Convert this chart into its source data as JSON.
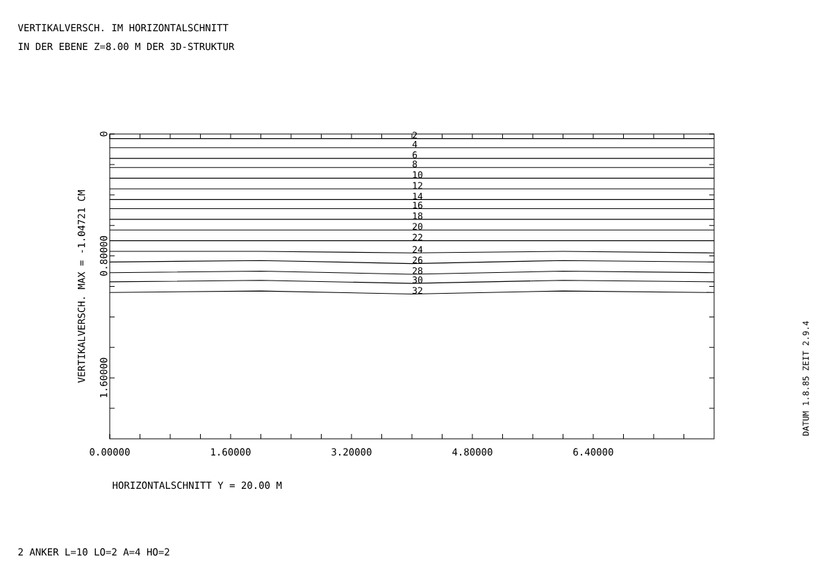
{
  "chart_data": {
    "type": "line",
    "title": "VERTIKALVERSCH. IM HORIZONTALSCHNITT",
    "subtitle": "IN DER EBENE Z=8.00 M DER 3D-STRUKTUR",
    "xlabel": "HORIZONTALSCHNITT Y = 20.00 M",
    "ylabel": "VERTIKALVERSCH. MAX = -1.04721 CM",
    "annotations": [
      "2 ANKER L=10 LO=2 A=4 HO=2",
      "DATUM 1.8.85  ZEIT 2.9.4"
    ],
    "x": [
      0,
      2.0,
      4.0,
      6.0,
      8.0
    ],
    "xlim": [
      0,
      8.0
    ],
    "ylim": [
      2.0,
      0
    ],
    "xticks": [
      {
        "value": 0,
        "label": "0.00000"
      },
      {
        "value": 0.4,
        "label": null
      },
      {
        "value": 0.8,
        "label": null
      },
      {
        "value": 1.2,
        "label": null
      },
      {
        "value": 1.6,
        "label": "1.60000"
      },
      {
        "value": 2.0,
        "label": null
      },
      {
        "value": 2.4,
        "label": null
      },
      {
        "value": 2.8,
        "label": null
      },
      {
        "value": 3.2,
        "label": "3.20000"
      },
      {
        "value": 3.6,
        "label": null
      },
      {
        "value": 4.0,
        "label": null
      },
      {
        "value": 4.4,
        "label": null
      },
      {
        "value": 4.8,
        "label": "4.80000"
      },
      {
        "value": 5.2,
        "label": null
      },
      {
        "value": 5.6,
        "label": null
      },
      {
        "value": 6.0,
        "label": null
      },
      {
        "value": 6.4,
        "label": "6.40000"
      },
      {
        "value": 6.8,
        "label": null
      },
      {
        "value": 7.2,
        "label": null
      },
      {
        "value": 7.6,
        "label": null
      }
    ],
    "yticks": [
      {
        "value": 0,
        "label": "0"
      },
      {
        "value": 0.2,
        "label": null
      },
      {
        "value": 0.4,
        "label": null
      },
      {
        "value": 0.6,
        "label": null
      },
      {
        "value": 0.8,
        "label": "0.80000"
      },
      {
        "value": 1.0,
        "label": null
      },
      {
        "value": 1.2,
        "label": null
      },
      {
        "value": 1.4,
        "label": null
      },
      {
        "value": 1.6,
        "label": "1.60000"
      },
      {
        "value": 1.8,
        "label": null
      }
    ],
    "series": [
      {
        "name": "2",
        "color": "#000000",
        "values": [
          0.03,
          0.03,
          0.03,
          0.03,
          0.03
        ]
      },
      {
        "name": "4",
        "color": "#000000",
        "values": [
          0.09,
          0.09,
          0.09,
          0.09,
          0.09
        ]
      },
      {
        "name": "6",
        "color": "#000000",
        "values": [
          0.16,
          0.16,
          0.16,
          0.16,
          0.16
        ]
      },
      {
        "name": "8",
        "color": "#000000",
        "values": [
          0.22,
          0.22,
          0.22,
          0.22,
          0.22
        ]
      },
      {
        "name": "10",
        "color": "#000000",
        "values": [
          0.29,
          0.29,
          0.29,
          0.29,
          0.29
        ]
      },
      {
        "name": "12",
        "color": "#000000",
        "values": [
          0.36,
          0.36,
          0.36,
          0.36,
          0.36
        ]
      },
      {
        "name": "14",
        "color": "#000000",
        "values": [
          0.43,
          0.43,
          0.43,
          0.43,
          0.43
        ]
      },
      {
        "name": "16",
        "color": "#000000",
        "values": [
          0.49,
          0.49,
          0.49,
          0.49,
          0.49
        ]
      },
      {
        "name": "18",
        "color": "#000000",
        "values": [
          0.56,
          0.56,
          0.56,
          0.56,
          0.56
        ]
      },
      {
        "name": "20",
        "color": "#000000",
        "values": [
          0.63,
          0.63,
          0.63,
          0.63,
          0.63
        ]
      },
      {
        "name": "22",
        "color": "#000000",
        "values": [
          0.7,
          0.7,
          0.7,
          0.7,
          0.7
        ]
      },
      {
        "name": "24",
        "color": "#000000",
        "values": [
          0.77,
          0.77,
          0.78,
          0.77,
          0.78
        ]
      },
      {
        "name": "26",
        "color": "#000000",
        "values": [
          0.84,
          0.83,
          0.85,
          0.83,
          0.84
        ]
      },
      {
        "name": "28",
        "color": "#000000",
        "values": [
          0.91,
          0.9,
          0.92,
          0.9,
          0.91
        ]
      },
      {
        "name": "30",
        "color": "#000000",
        "values": [
          0.97,
          0.96,
          0.98,
          0.96,
          0.97
        ]
      },
      {
        "name": "32",
        "color": "#000000",
        "values": [
          1.04,
          1.03,
          1.05,
          1.03,
          1.04
        ]
      }
    ]
  }
}
